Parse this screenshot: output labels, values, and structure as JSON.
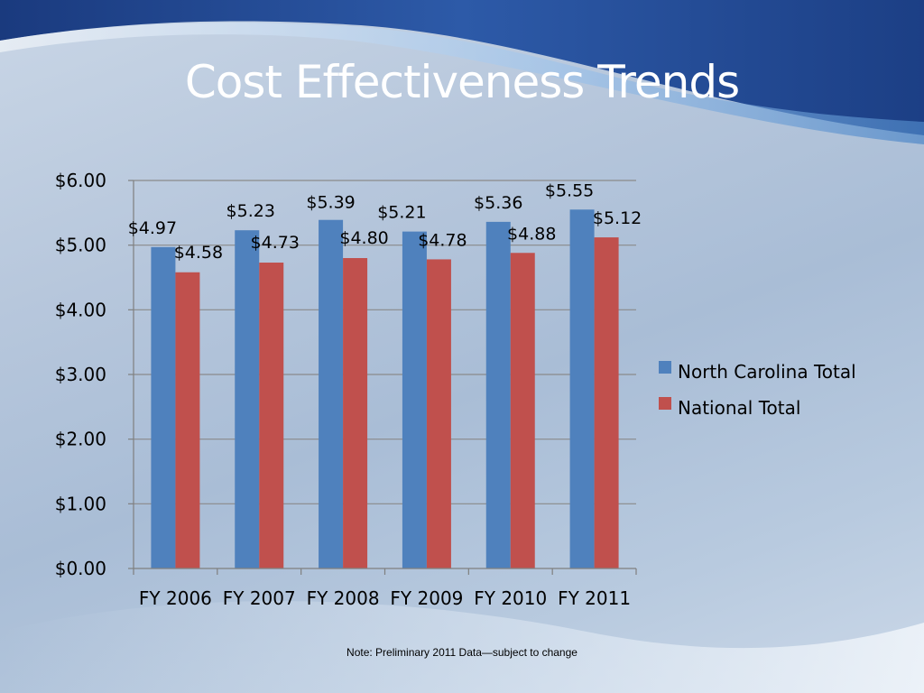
{
  "slide": {
    "title": "Cost Effectiveness Trends",
    "note": "Note:  Preliminary 2011 Data—subject to change"
  },
  "colors": {
    "north_carolina": "#4f81bd",
    "national": "#c0504d",
    "title": "#ffffff",
    "background_accent": "#1f3f86"
  },
  "chart_data": {
    "type": "bar",
    "title": "",
    "xlabel": "",
    "ylabel": "",
    "categories": [
      "FY 2006",
      "FY 2007",
      "FY 2008",
      "FY 2009",
      "FY 2010",
      "FY 2011"
    ],
    "series": [
      {
        "name": "North Carolina Total",
        "values": [
          4.97,
          5.23,
          5.39,
          5.21,
          5.36,
          5.55
        ],
        "labels": [
          "$4.97",
          "$5.23",
          "$5.39",
          "$5.21",
          "$5.36",
          "$5.55"
        ]
      },
      {
        "name": "National Total",
        "values": [
          4.58,
          4.73,
          4.8,
          4.78,
          4.88,
          5.12
        ],
        "labels": [
          "$4.58",
          "$4.73",
          "$4.80",
          "$4.78",
          "$4.88",
          "$5.12"
        ]
      }
    ],
    "ylim": [
      0,
      6
    ],
    "yticks": [
      0,
      1,
      2,
      3,
      4,
      5,
      6
    ],
    "ytick_labels": [
      "$0.00",
      "$1.00",
      "$2.00",
      "$3.00",
      "$4.00",
      "$5.00",
      "$6.00"
    ],
    "grid": true,
    "legend_position": "right"
  }
}
